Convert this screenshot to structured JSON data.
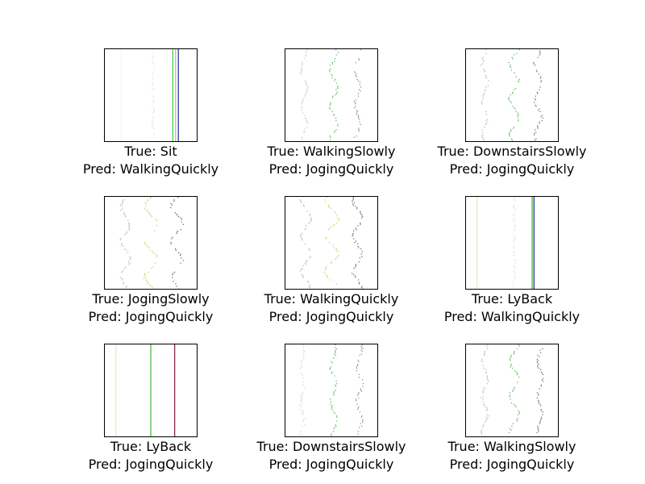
{
  "chart_data": {
    "type": "image-grid",
    "grid": {
      "rows": 3,
      "cols": 3
    },
    "panels": [
      {
        "true_label": "True: Sit",
        "pred_label": "Pred: WalkingQuickly",
        "traces": [
          {
            "x": 0.18,
            "color": "#f2f2f2",
            "opacity": 0.7,
            "wobble": 0,
            "sparse": false
          },
          {
            "x": 0.52,
            "color": "#d0d0b0",
            "opacity": 0.6,
            "wobble": 0,
            "sparse": true
          },
          {
            "x": 0.74,
            "color": "#33cc33",
            "opacity": 0.9,
            "wobble": 0,
            "sparse": false
          },
          {
            "x": 0.8,
            "color": "#2a2aa8",
            "opacity": 0.95,
            "wobble": 0,
            "sparse": false
          },
          {
            "x": 0.77,
            "color": "#999999",
            "opacity": 0.7,
            "wobble": 0,
            "sparse": false
          }
        ]
      },
      {
        "true_label": "True: WalkingSlowly",
        "pred_label": "Pred: JogingQuickly",
        "traces": [
          {
            "x": 0.2,
            "color": "#bb88bb",
            "opacity": 0.6,
            "wobble": 0.03,
            "sparse": true
          },
          {
            "x": 0.52,
            "color": "#33aa33",
            "opacity": 0.85,
            "wobble": 0.04,
            "sparse": true
          },
          {
            "x": 0.78,
            "color": "#666666",
            "opacity": 0.8,
            "wobble": 0.03,
            "sparse": true
          }
        ]
      },
      {
        "true_label": "True: DownstairsSlowly",
        "pred_label": "Pred: JogingQuickly",
        "traces": [
          {
            "x": 0.2,
            "color": "#aa66aa",
            "opacity": 0.6,
            "wobble": 0.03,
            "sparse": true
          },
          {
            "x": 0.52,
            "color": "#33aa33",
            "opacity": 0.85,
            "wobble": 0.05,
            "sparse": true
          },
          {
            "x": 0.78,
            "color": "#444444",
            "opacity": 0.8,
            "wobble": 0.04,
            "sparse": true
          }
        ]
      },
      {
        "true_label": "True: JogingSlowly",
        "pred_label": "Pred: JogingQuickly",
        "traces": [
          {
            "x": 0.22,
            "color": "#888888",
            "opacity": 0.7,
            "wobble": 0.05,
            "sparse": true
          },
          {
            "x": 0.5,
            "color": "#aacc33",
            "opacity": 0.85,
            "wobble": 0.07,
            "sparse": true
          },
          {
            "x": 0.78,
            "color": "#333333",
            "opacity": 0.8,
            "wobble": 0.06,
            "sparse": true
          }
        ]
      },
      {
        "true_label": "True: WalkingQuickly",
        "pred_label": "Pred: JogingQuickly",
        "traces": [
          {
            "x": 0.22,
            "color": "#888888",
            "opacity": 0.7,
            "wobble": 0.05,
            "sparse": true
          },
          {
            "x": 0.5,
            "color": "#aacc33",
            "opacity": 0.85,
            "wobble": 0.07,
            "sparse": true
          },
          {
            "x": 0.78,
            "color": "#333333",
            "opacity": 0.8,
            "wobble": 0.05,
            "sparse": true
          }
        ]
      },
      {
        "true_label": "True: LyBack",
        "pred_label": "Pred: WalkingQuickly",
        "traces": [
          {
            "x": 0.12,
            "color": "#ccee99",
            "opacity": 0.7,
            "wobble": 0,
            "sparse": false
          },
          {
            "x": 0.52,
            "color": "#cccc88",
            "opacity": 0.6,
            "wobble": 0,
            "sparse": true
          },
          {
            "x": 0.72,
            "color": "#33aa33",
            "opacity": 0.9,
            "wobble": 0,
            "sparse": false
          },
          {
            "x": 0.74,
            "color": "#2a2aa8",
            "opacity": 0.95,
            "wobble": 0,
            "sparse": false
          }
        ]
      },
      {
        "true_label": "True: LyBack",
        "pred_label": "Pred: JogingQuickly",
        "traces": [
          {
            "x": 0.12,
            "color": "#ccee99",
            "opacity": 0.7,
            "wobble": 0,
            "sparse": false
          },
          {
            "x": 0.5,
            "color": "#33aa33",
            "opacity": 0.85,
            "wobble": 0,
            "sparse": false
          },
          {
            "x": 0.76,
            "color": "#8a1a3a",
            "opacity": 0.95,
            "wobble": 0,
            "sparse": false
          }
        ]
      },
      {
        "true_label": "True: DownstairsSlowly",
        "pred_label": "Pred: JogingQuickly",
        "traces": [
          {
            "x": 0.18,
            "color": "#aaaaaa",
            "opacity": 0.6,
            "wobble": 0.02,
            "sparse": true
          },
          {
            "x": 0.52,
            "color": "#33aa33",
            "opacity": 0.85,
            "wobble": 0.03,
            "sparse": true
          },
          {
            "x": 0.8,
            "color": "#666666",
            "opacity": 0.8,
            "wobble": 0.03,
            "sparse": true
          }
        ]
      },
      {
        "true_label": "True: WalkingSlowly",
        "pred_label": "Pred: JogingQuickly",
        "traces": [
          {
            "x": 0.2,
            "color": "#aa66aa",
            "opacity": 0.6,
            "wobble": 0.03,
            "sparse": true
          },
          {
            "x": 0.52,
            "color": "#33aa33",
            "opacity": 0.85,
            "wobble": 0.05,
            "sparse": true
          },
          {
            "x": 0.8,
            "color": "#444444",
            "opacity": 0.8,
            "wobble": 0.03,
            "sparse": true
          }
        ]
      }
    ]
  }
}
